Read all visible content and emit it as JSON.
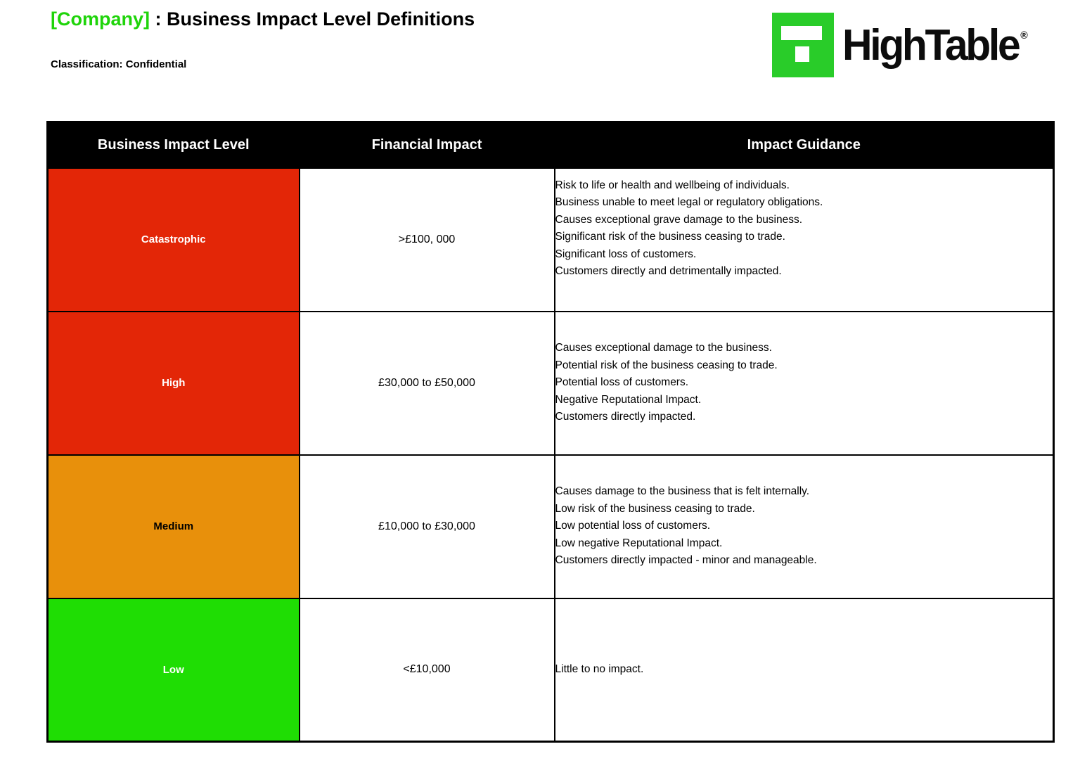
{
  "header": {
    "title_company": "[Company]",
    "title_rest": " : Business Impact Level Definitions",
    "classification": "Classification: Confidential"
  },
  "logo": {
    "wordmark": "HighTable",
    "registered": "®",
    "icon": "hightable-block-t-icon"
  },
  "colors": {
    "title_green": "#1FD40A",
    "brand_green": "#29CC29",
    "header_bg": "#000000",
    "header_fg": "#FFFFFF",
    "catastrophic_red": "#E32607",
    "high_red": "#E32607",
    "medium_orange": "#E8900B",
    "low_green": "#1FDD04"
  },
  "table": {
    "headers": [
      "Business Impact Level",
      "Financial Impact",
      "Impact Guidance"
    ],
    "rows": [
      {
        "level": "Catastrophic",
        "bg": "#E32607",
        "fg": "#FFFFFF",
        "financial": ">£100, 000",
        "guidance": [
          "Risk to life or health and wellbeing of individuals.",
          "Business unable to meet legal or regulatory obligations.",
          "Causes exceptional grave damage to the business.",
          "Significant risk of the business ceasing to trade.",
          "Significant loss of customers.",
          "Customers directly and detrimentally impacted."
        ]
      },
      {
        "level": "High",
        "bg": "#E32607",
        "fg": "#FFFFFF",
        "financial": "£30,000 to £50,000",
        "guidance": [
          "Causes exceptional damage to the business.",
          "Potential risk of the business ceasing to trade.",
          "Potential loss of customers.",
          "Negative Reputational Impact.",
          "Customers directly impacted."
        ]
      },
      {
        "level": "Medium",
        "bg": "#E8900B",
        "fg": "#000000",
        "financial": "£10,000 to £30,000",
        "guidance": [
          "Causes damage to the business that is felt internally.",
          "Low risk of the business ceasing to trade.",
          "Low potential loss of customers.",
          "Low negative Reputational Impact.",
          "Customers directly impacted - minor and manageable."
        ]
      },
      {
        "level": "Low",
        "bg": "#1FDD04",
        "fg": "#FFFFFF",
        "financial": "<£10,000",
        "guidance": [
          "Little to no impact."
        ]
      }
    ]
  }
}
